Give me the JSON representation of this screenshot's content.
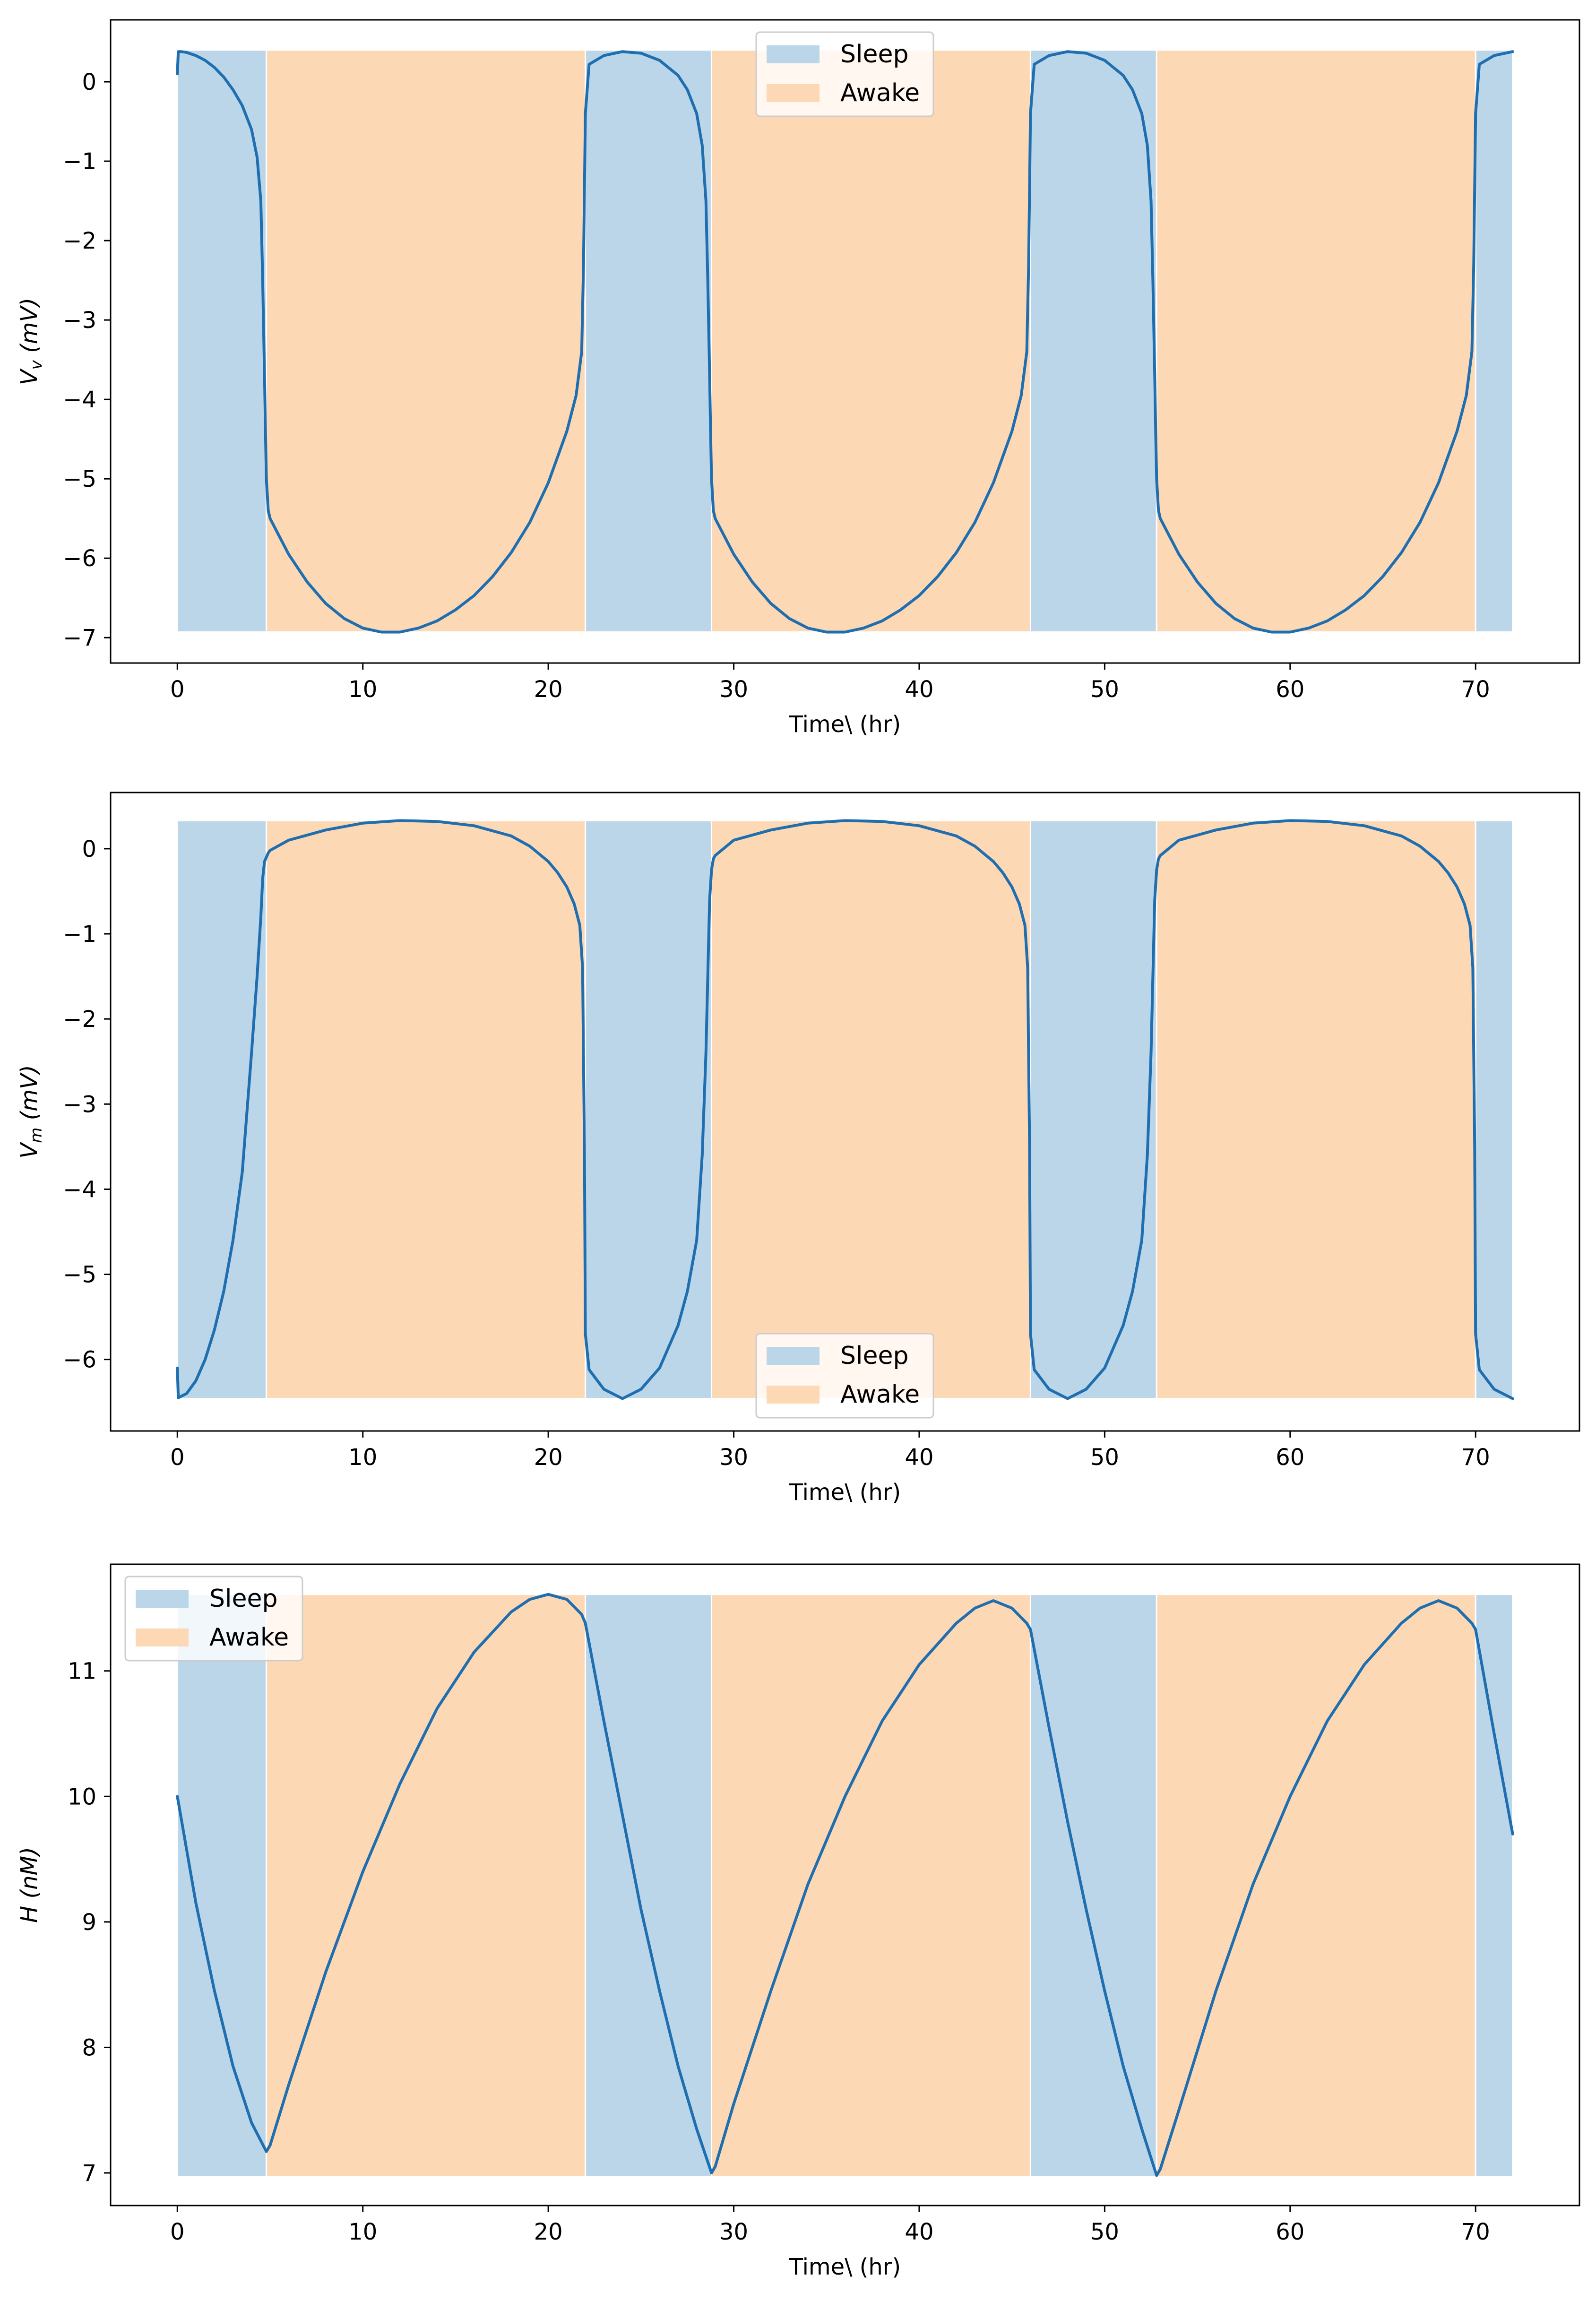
{
  "colors": {
    "sleep_band": "#bbd6e8",
    "awake_band": "#fdd8b5",
    "line": "#1f6fb0",
    "frame": "#000000"
  },
  "chart_data": [
    {
      "type": "line",
      "title": "",
      "xlabel": "Time\\ (hr)",
      "ylabel": "V_v (mV)",
      "ylabel_main": "V",
      "ylabel_sub": "v",
      "ylabel_unit": " (mV)",
      "xlim": [
        -3.6,
        75.6
      ],
      "ylim": [
        -7.32,
        0.78
      ],
      "xticks": [
        0,
        10,
        20,
        30,
        40,
        50,
        60,
        70
      ],
      "yticks": [
        0,
        -1,
        -2,
        -3,
        -4,
        -5,
        -6,
        -7
      ],
      "ytick_labels": [
        "0",
        "−1",
        "−2",
        "−3",
        "−4",
        "−5",
        "−6",
        "−7"
      ],
      "band_range": [
        -6.93,
        0.4
      ],
      "legend": {
        "location": "upper center",
        "entries": [
          "Sleep",
          "Awake"
        ]
      },
      "grid": false,
      "bands": [
        {
          "state": "Sleep",
          "start": 0,
          "end": 4.8
        },
        {
          "state": "Awake",
          "start": 4.8,
          "end": 22
        },
        {
          "state": "Sleep",
          "start": 22,
          "end": 28.8
        },
        {
          "state": "Awake",
          "start": 28.8,
          "end": 46
        },
        {
          "state": "Sleep",
          "start": 46,
          "end": 52.8
        },
        {
          "state": "Awake",
          "start": 52.8,
          "end": 70
        },
        {
          "state": "Sleep",
          "start": 70,
          "end": 72
        }
      ],
      "series": [
        {
          "x": [
            0,
            0.05,
            0.2,
            0.5,
            1,
            1.5,
            2,
            2.5,
            3,
            3.5,
            4,
            4.3,
            4.5,
            4.6,
            4.7,
            4.75,
            4.8,
            4.9,
            5,
            6,
            7,
            8,
            9,
            10,
            11,
            12,
            13,
            14,
            15,
            16,
            17,
            18,
            19,
            20,
            21,
            21.5,
            21.8,
            21.9,
            22,
            22.2,
            23,
            24,
            25,
            26,
            27,
            27.5,
            28,
            28.3,
            28.5,
            28.6,
            28.7,
            28.75,
            28.8,
            28.9,
            29,
            30,
            31,
            32,
            33,
            34,
            35,
            36,
            37,
            38,
            39,
            40,
            41,
            42,
            43,
            44,
            45,
            45.5,
            45.8,
            45.9,
            46,
            46.2,
            47,
            48,
            49,
            50,
            51,
            51.5,
            52,
            52.3,
            52.5,
            52.6,
            52.7,
            52.75,
            52.8,
            52.9,
            53,
            54,
            55,
            56,
            57,
            58,
            59,
            60,
            61,
            62,
            63,
            64,
            65,
            66,
            67,
            68,
            69,
            69.5,
            69.8,
            69.9,
            70,
            70.2,
            71,
            72
          ],
          "y": [
            0.1,
            0.38,
            0.38,
            0.37,
            0.33,
            0.27,
            0.18,
            0.06,
            -0.1,
            -0.3,
            -0.6,
            -0.95,
            -1.5,
            -2.5,
            -3.7,
            -4.4,
            -5.0,
            -5.4,
            -5.5,
            -5.95,
            -6.3,
            -6.57,
            -6.76,
            -6.88,
            -6.93,
            -6.93,
            -6.88,
            -6.79,
            -6.65,
            -6.47,
            -6.23,
            -5.93,
            -5.55,
            -5.05,
            -4.4,
            -3.95,
            -3.4,
            -2.3,
            -0.4,
            0.22,
            0.33,
            0.38,
            0.36,
            0.27,
            0.08,
            -0.1,
            -0.4,
            -0.8,
            -1.5,
            -2.5,
            -3.7,
            -4.4,
            -5.0,
            -5.4,
            -5.5,
            -5.95,
            -6.3,
            -6.57,
            -6.76,
            -6.88,
            -6.93,
            -6.93,
            -6.88,
            -6.79,
            -6.65,
            -6.47,
            -6.23,
            -5.93,
            -5.55,
            -5.05,
            -4.4,
            -3.95,
            -3.4,
            -2.3,
            -0.4,
            0.22,
            0.33,
            0.38,
            0.36,
            0.27,
            0.08,
            -0.1,
            -0.4,
            -0.8,
            -1.5,
            -2.5,
            -3.7,
            -4.4,
            -5.0,
            -5.4,
            -5.5,
            -5.95,
            -6.3,
            -6.57,
            -6.76,
            -6.88,
            -6.93,
            -6.93,
            -6.88,
            -6.79,
            -6.65,
            -6.47,
            -6.23,
            -5.93,
            -5.55,
            -5.05,
            -4.4,
            -3.95,
            -3.4,
            -2.3,
            -0.4,
            0.22,
            0.33,
            0.38
          ]
        }
      ]
    },
    {
      "type": "line",
      "title": "",
      "xlabel": "Time\\ (hr)",
      "ylabel": "V_m (mV)",
      "ylabel_main": "V",
      "ylabel_sub": "m",
      "ylabel_unit": " (mV)",
      "xlim": [
        -3.6,
        75.6
      ],
      "ylim": [
        -6.84,
        0.66
      ],
      "xticks": [
        0,
        10,
        20,
        30,
        40,
        50,
        60,
        70
      ],
      "yticks": [
        0,
        -1,
        -2,
        -3,
        -4,
        -5,
        -6
      ],
      "ytick_labels": [
        "0",
        "−1",
        "−2",
        "−3",
        "−4",
        "−5",
        "−6"
      ],
      "band_range": [
        -6.46,
        0.33
      ],
      "legend": {
        "location": "lower center",
        "entries": [
          "Sleep",
          "Awake"
        ]
      },
      "grid": false,
      "bands": [
        {
          "state": "Sleep",
          "start": 0,
          "end": 4.8
        },
        {
          "state": "Awake",
          "start": 4.8,
          "end": 22
        },
        {
          "state": "Sleep",
          "start": 22,
          "end": 28.8
        },
        {
          "state": "Awake",
          "start": 28.8,
          "end": 46
        },
        {
          "state": "Sleep",
          "start": 46,
          "end": 52.8
        },
        {
          "state": "Awake",
          "start": 52.8,
          "end": 70
        },
        {
          "state": "Sleep",
          "start": 70,
          "end": 72
        }
      ],
      "series": [
        {
          "x": [
            0,
            0.05,
            0.5,
            1,
            1.5,
            2,
            2.5,
            3,
            3.5,
            4,
            4.3,
            4.5,
            4.6,
            4.7,
            4.8,
            4.9,
            5,
            6,
            8,
            10,
            12,
            14,
            16,
            18,
            19,
            20,
            20.5,
            21,
            21.4,
            21.7,
            21.85,
            21.95,
            22,
            22.2,
            23,
            24,
            25,
            26,
            27,
            27.5,
            28,
            28.3,
            28.5,
            28.6,
            28.7,
            28.8,
            28.9,
            29,
            30,
            32,
            34,
            36,
            38,
            40,
            42,
            43,
            44,
            44.5,
            45,
            45.4,
            45.7,
            45.85,
            45.95,
            46,
            46.2,
            47,
            48,
            49,
            50,
            51,
            51.5,
            52,
            52.3,
            52.5,
            52.6,
            52.7,
            52.8,
            52.9,
            53,
            54,
            56,
            58,
            60,
            62,
            64,
            66,
            67,
            68,
            68.5,
            69,
            69.4,
            69.7,
            69.85,
            69.95,
            70,
            70.2,
            71,
            72
          ],
          "y": [
            -6.1,
            -6.45,
            -6.4,
            -6.25,
            -6.0,
            -5.65,
            -5.2,
            -4.6,
            -3.8,
            -2.4,
            -1.5,
            -0.8,
            -0.35,
            -0.15,
            -0.1,
            -0.05,
            -0.02,
            0.1,
            0.22,
            0.3,
            0.33,
            0.32,
            0.27,
            0.15,
            0.03,
            -0.15,
            -0.28,
            -0.45,
            -0.65,
            -0.9,
            -1.4,
            -3.5,
            -5.7,
            -6.12,
            -6.35,
            -6.46,
            -6.35,
            -6.1,
            -5.6,
            -5.2,
            -4.6,
            -3.6,
            -2.4,
            -1.5,
            -0.6,
            -0.25,
            -0.12,
            -0.08,
            0.1,
            0.22,
            0.3,
            0.33,
            0.32,
            0.27,
            0.15,
            0.03,
            -0.15,
            -0.28,
            -0.45,
            -0.65,
            -0.9,
            -1.4,
            -3.5,
            -5.7,
            -6.12,
            -6.35,
            -6.46,
            -6.35,
            -6.1,
            -5.6,
            -5.2,
            -4.6,
            -3.6,
            -2.4,
            -1.5,
            -0.6,
            -0.25,
            -0.12,
            -0.08,
            0.1,
            0.22,
            0.3,
            0.33,
            0.32,
            0.27,
            0.15,
            0.03,
            -0.15,
            -0.28,
            -0.45,
            -0.65,
            -0.9,
            -1.4,
            -3.5,
            -5.7,
            -6.12,
            -6.35,
            -6.46
          ]
        }
      ]
    },
    {
      "type": "line",
      "title": "",
      "xlabel": "Time\\ (hr)",
      "ylabel": "H (nM)",
      "ylabel_main": "H",
      "ylabel_sub": "",
      "ylabel_unit": " (nM)",
      "xlim": [
        -3.6,
        75.6
      ],
      "ylim": [
        6.74,
        11.85
      ],
      "xticks": [
        0,
        10,
        20,
        30,
        40,
        50,
        60,
        70
      ],
      "yticks": [
        7,
        8,
        9,
        10,
        11
      ],
      "ytick_labels": [
        "7",
        "8",
        "9",
        "10",
        "11"
      ],
      "band_range": [
        6.97,
        11.61
      ],
      "legend": {
        "location": "upper left",
        "entries": [
          "Sleep",
          "Awake"
        ]
      },
      "grid": false,
      "bands": [
        {
          "state": "Sleep",
          "start": 0,
          "end": 4.8
        },
        {
          "state": "Awake",
          "start": 4.8,
          "end": 22
        },
        {
          "state": "Sleep",
          "start": 22,
          "end": 28.8
        },
        {
          "state": "Awake",
          "start": 28.8,
          "end": 46
        },
        {
          "state": "Sleep",
          "start": 46,
          "end": 52.8
        },
        {
          "state": "Awake",
          "start": 52.8,
          "end": 70
        },
        {
          "state": "Sleep",
          "start": 70,
          "end": 72
        }
      ],
      "series": [
        {
          "x": [
            0,
            1,
            2,
            3,
            4,
            4.8,
            5,
            6,
            8,
            10,
            12,
            14,
            16,
            18,
            19,
            20,
            21,
            21.8,
            22,
            23,
            24,
            25,
            26,
            27,
            28,
            28.8,
            29,
            30,
            32,
            34,
            36,
            38,
            40,
            42,
            43,
            44,
            45,
            45.8,
            46,
            47,
            48,
            49,
            50,
            51,
            52,
            52.8,
            53,
            54,
            56,
            58,
            60,
            62,
            64,
            66,
            67,
            68,
            69,
            69.8,
            70,
            71,
            72
          ],
          "y": [
            10.0,
            9.15,
            8.45,
            7.85,
            7.4,
            7.17,
            7.22,
            7.7,
            8.6,
            9.4,
            10.1,
            10.7,
            11.15,
            11.47,
            11.57,
            11.61,
            11.57,
            11.45,
            11.38,
            10.6,
            9.85,
            9.1,
            8.45,
            7.85,
            7.35,
            7.0,
            7.05,
            7.55,
            8.45,
            9.3,
            10.0,
            10.6,
            11.05,
            11.38,
            11.5,
            11.56,
            11.5,
            11.38,
            11.33,
            10.55,
            9.8,
            9.1,
            8.45,
            7.85,
            7.35,
            6.98,
            7.03,
            7.5,
            8.45,
            9.3,
            10.0,
            10.6,
            11.05,
            11.38,
            11.5,
            11.56,
            11.5,
            11.38,
            11.33,
            10.5,
            9.7
          ]
        }
      ]
    }
  ]
}
